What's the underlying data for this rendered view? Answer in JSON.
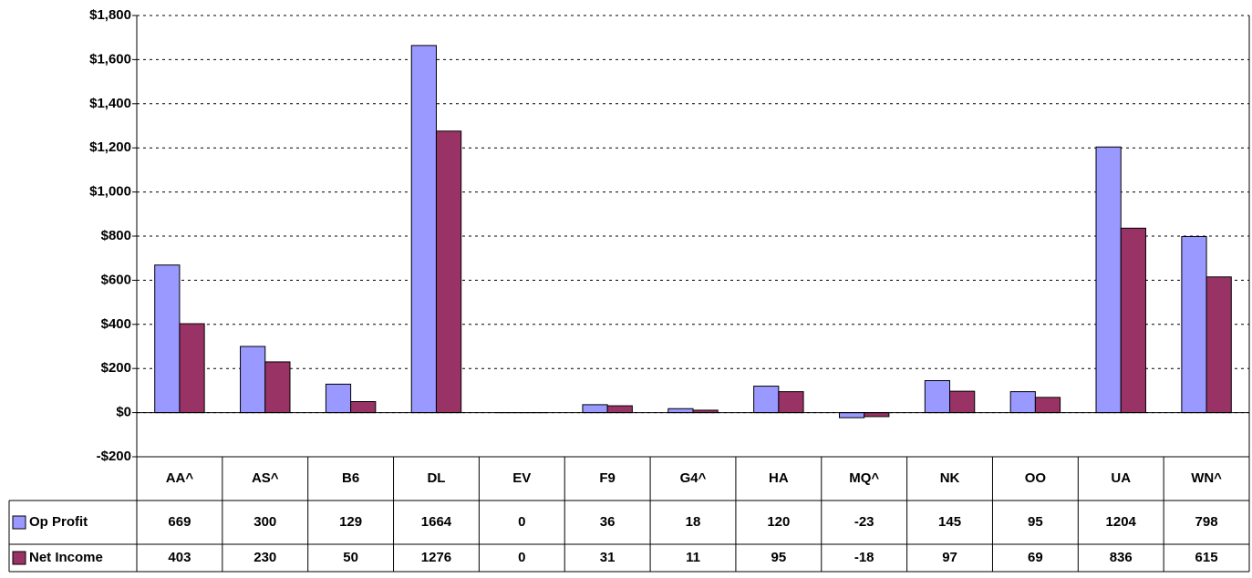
{
  "chart_data": {
    "type": "bar",
    "categories": [
      "AA^",
      "AS^",
      "B6",
      "DL",
      "EV",
      "F9",
      "G4^",
      "HA",
      "MQ^",
      "NK",
      "OO",
      "UA",
      "WN^"
    ],
    "series": [
      {
        "name": "Op Profit",
        "color": "#9999ff",
        "values": [
          669,
          300,
          129,
          1664,
          0,
          36,
          18,
          120,
          -23,
          145,
          95,
          1204,
          798
        ]
      },
      {
        "name": "Net Income",
        "color": "#993366",
        "values": [
          403,
          230,
          50,
          1276,
          0,
          31,
          11,
          95,
          -18,
          97,
          69,
          836,
          615
        ]
      }
    ],
    "ylim": [
      -200,
      1800
    ],
    "yticks": [
      {
        "value": -200,
        "label": "-$200"
      },
      {
        "value": 0,
        "label": "$0"
      },
      {
        "value": 200,
        "label": "$200"
      },
      {
        "value": 400,
        "label": "$400"
      },
      {
        "value": 600,
        "label": "$600"
      },
      {
        "value": 800,
        "label": "$800"
      },
      {
        "value": 1000,
        "label": "$1,000"
      },
      {
        "value": 1200,
        "label": "$1,200"
      },
      {
        "value": 1400,
        "label": "$1,400"
      },
      {
        "value": 1600,
        "label": "$1,600"
      },
      {
        "value": 1800,
        "label": "$1,800"
      }
    ],
    "grid": true
  }
}
